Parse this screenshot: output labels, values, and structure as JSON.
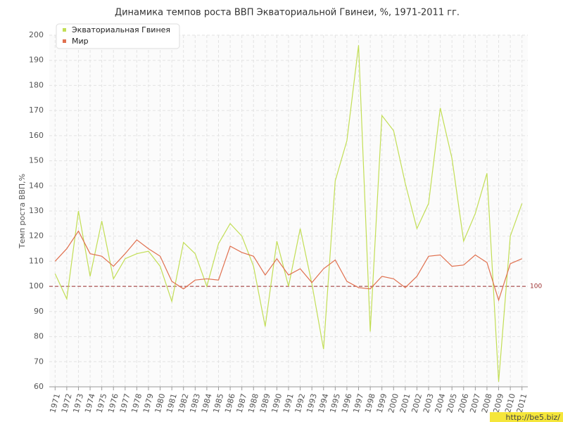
{
  "chart_data": {
    "type": "line",
    "title": "Динамика темпов роста ВВП Экваториальной Гвинеи, %, 1971-2011 гг.",
    "y_label": "Темп роста ВВП,%",
    "x": [
      1971,
      1972,
      1973,
      1974,
      1975,
      1976,
      1977,
      1978,
      1979,
      1980,
      1981,
      1982,
      1983,
      1984,
      1985,
      1986,
      1987,
      1988,
      1989,
      1990,
      1991,
      1992,
      1993,
      1994,
      1995,
      1996,
      1997,
      1998,
      1999,
      2000,
      2001,
      2002,
      2003,
      2004,
      2005,
      2006,
      2007,
      2008,
      2009,
      2010,
      2011
    ],
    "series": [
      {
        "name": "Экваториальная Гвинея",
        "color": "#c2de55",
        "values": [
          105,
          95,
          130,
          104,
          126,
          103,
          111,
          113,
          114,
          108,
          94,
          117.5,
          113,
          100,
          117,
          125,
          120,
          108,
          84,
          118,
          100,
          123,
          101,
          75,
          142,
          158,
          196,
          82,
          168,
          162,
          141,
          123,
          133,
          171,
          151,
          118,
          129,
          145,
          62,
          120,
          133
        ]
      },
      {
        "name": "Мир",
        "color": "#e0704f",
        "values": [
          110,
          115,
          122,
          113,
          112,
          108,
          113,
          118.5,
          115,
          112,
          102,
          99,
          102.5,
          103,
          102.5,
          116,
          113.5,
          112,
          104.5,
          111,
          104.5,
          107,
          101.5,
          107,
          110.5,
          102,
          99.5,
          99,
          104,
          103,
          99.5,
          104,
          112,
          112.5,
          108,
          108.5,
          112.5,
          109.5,
          94.5,
          109,
          111
        ]
      }
    ],
    "xlim": [
      1970.5,
      2011.5
    ],
    "ylim": [
      60,
      200
    ],
    "yticks": [
      60,
      70,
      80,
      90,
      100,
      110,
      120,
      130,
      140,
      150,
      160,
      170,
      180,
      190,
      200
    ],
    "reference_line": 100,
    "grid": true,
    "legend": "top-left",
    "watermark": "http://be5.biz/"
  }
}
